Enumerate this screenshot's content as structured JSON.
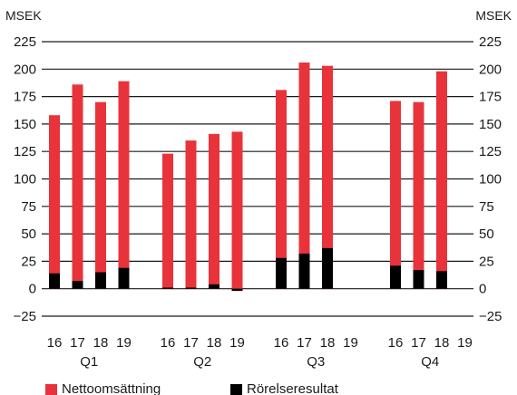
{
  "chart_data": {
    "type": "bar",
    "ylabel_left": "MSEK",
    "ylabel_right": "MSEK",
    "ylim": [
      -25,
      225
    ],
    "yticks": [
      -25,
      0,
      25,
      50,
      75,
      100,
      125,
      150,
      175,
      200,
      225
    ],
    "ytick_labels": [
      "−25",
      "0",
      "25",
      "50",
      "75",
      "100",
      "125",
      "150",
      "175",
      "200",
      "225"
    ],
    "groups": [
      "Q1",
      "Q2",
      "Q3",
      "Q4"
    ],
    "years": [
      "16",
      "17",
      "18",
      "19"
    ],
    "colors": {
      "Nettoomsättning": "#e8333b",
      "Rörelseresultat": "#000000"
    },
    "series": [
      {
        "name": "Nettoomsättning",
        "color": "#e8333b",
        "values": [
          [
            158,
            186,
            170,
            189
          ],
          [
            123,
            135,
            141,
            143
          ],
          [
            181,
            206,
            203,
            null
          ],
          [
            171,
            170,
            198,
            null
          ]
        ]
      },
      {
        "name": "Rörelseresultat",
        "color": "#000000",
        "values": [
          [
            14,
            7,
            15,
            19
          ],
          [
            1,
            1,
            4,
            -2
          ],
          [
            28,
            32,
            37,
            null
          ],
          [
            21,
            17,
            16,
            null
          ]
        ]
      }
    ],
    "legend": {
      "position": "bottom-left",
      "items": [
        "Nettoomsättning",
        "Rörelseresultat"
      ]
    },
    "grid": "horizontal"
  }
}
